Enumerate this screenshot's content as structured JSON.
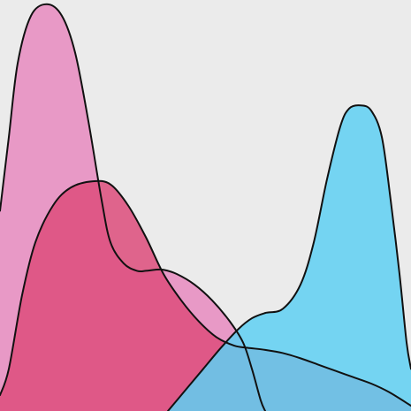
{
  "chart_data": {
    "type": "area",
    "title": "",
    "xlabel": "",
    "ylabel": "",
    "grid": false,
    "legend": "none",
    "xlim": [
      0,
      465
    ],
    "ylim": [
      0,
      390
    ],
    "series": [
      {
        "color": "#e88bc0",
        "points": [
          [
            0,
            190
          ],
          [
            10,
            260
          ],
          [
            20,
            330
          ],
          [
            35,
            375
          ],
          [
            53,
            386
          ],
          [
            70,
            375
          ],
          [
            85,
            340
          ],
          [
            100,
            275
          ],
          [
            115,
            200
          ],
          [
            125,
            160
          ],
          [
            140,
            140
          ],
          [
            155,
            133
          ],
          [
            165,
            133
          ],
          [
            175,
            134
          ],
          [
            185,
            134
          ],
          [
            200,
            130
          ],
          [
            220,
            120
          ],
          [
            240,
            105
          ],
          [
            260,
            85
          ],
          [
            275,
            65
          ],
          [
            285,
            40
          ],
          [
            295,
            10
          ],
          [
            300,
            0
          ]
        ]
      },
      {
        "color": "#dd4c7b",
        "points": [
          [
            0,
            15
          ],
          [
            10,
            40
          ],
          [
            25,
            110
          ],
          [
            40,
            160
          ],
          [
            60,
            195
          ],
          [
            80,
            212
          ],
          [
            105,
            218
          ],
          [
            125,
            215
          ],
          [
            145,
            195
          ],
          [
            165,
            165
          ],
          [
            185,
            130
          ],
          [
            205,
            105
          ],
          [
            225,
            85
          ],
          [
            245,
            70
          ],
          [
            265,
            62
          ],
          [
            280,
            60
          ],
          [
            300,
            58
          ],
          [
            320,
            55
          ],
          [
            340,
            50
          ],
          [
            360,
            44
          ],
          [
            380,
            38
          ],
          [
            400,
            32
          ],
          [
            420,
            26
          ],
          [
            440,
            18
          ],
          [
            465,
            5
          ]
        ]
      },
      {
        "color": "#5fd0f3",
        "points": [
          [
            190,
            0
          ],
          [
            210,
            20
          ],
          [
            230,
            40
          ],
          [
            250,
            60
          ],
          [
            270,
            78
          ],
          [
            285,
            88
          ],
          [
            300,
            93
          ],
          [
            320,
            97
          ],
          [
            340,
            120
          ],
          [
            355,
            160
          ],
          [
            370,
            220
          ],
          [
            385,
            270
          ],
          [
            395,
            287
          ],
          [
            408,
            290
          ],
          [
            420,
            285
          ],
          [
            432,
            260
          ],
          [
            442,
            200
          ],
          [
            452,
            130
          ],
          [
            460,
            65
          ],
          [
            465,
            40
          ]
        ]
      }
    ]
  }
}
